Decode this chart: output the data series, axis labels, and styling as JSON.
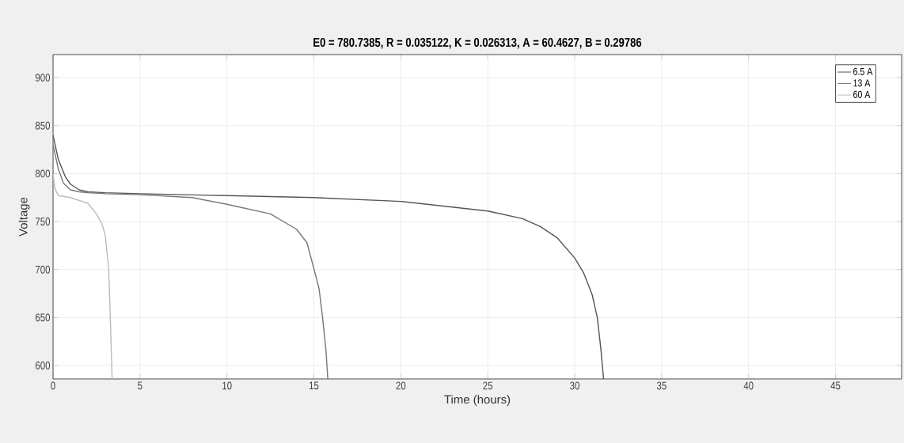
{
  "chart_data": {
    "type": "line",
    "title": "E0 = 780.7385, R = 0.035122, K = 0.026313, A = 60.4627, B = 0.29786",
    "xlabel": "Time (hours)",
    "ylabel": "Voltage",
    "xlim": [
      0,
      48.8
    ],
    "ylim": [
      586,
      924
    ],
    "xticks": [
      0,
      5,
      10,
      15,
      20,
      25,
      30,
      35,
      40,
      45
    ],
    "yticks": [
      600,
      650,
      700,
      750,
      800,
      850,
      900
    ],
    "grid": true,
    "legend": "top right",
    "line_style": "solid",
    "series": [
      {
        "name": "6.5 A",
        "color": "#555555",
        "x": [
          0,
          0.3,
          0.7,
          1.0,
          1.5,
          2.0,
          3,
          5,
          10,
          15,
          20,
          25,
          27,
          28,
          29,
          30,
          30.5,
          31,
          31.3,
          31.5,
          31.66
        ],
        "values": [
          840,
          815,
          797,
          789,
          783,
          781,
          780,
          779,
          777,
          775,
          771,
          761,
          753,
          745,
          733,
          712,
          697,
          674,
          650,
          618,
          586
        ]
      },
      {
        "name": "13 A",
        "color": "#777777",
        "x": [
          0,
          0.3,
          0.6,
          1.0,
          1.5,
          2.0,
          3,
          5,
          8,
          10,
          12.5,
          14,
          14.6,
          15,
          15.3,
          15.5,
          15.7,
          15.8
        ],
        "values": [
          830,
          805,
          790,
          783,
          781,
          780,
          779,
          778,
          775,
          768,
          758,
          742,
          728,
          701,
          680,
          650,
          615,
          586
        ]
      },
      {
        "name": "60 A",
        "color": "#bbbbbb",
        "x": [
          0,
          0.1,
          0.3,
          1.0,
          2.0,
          2.5,
          2.8,
          3.0,
          3.2,
          3.3,
          3.35,
          3.4
        ],
        "values": [
          800,
          785,
          777,
          775,
          769,
          758,
          748,
          736,
          701,
          646,
          615,
          586
        ]
      }
    ]
  }
}
